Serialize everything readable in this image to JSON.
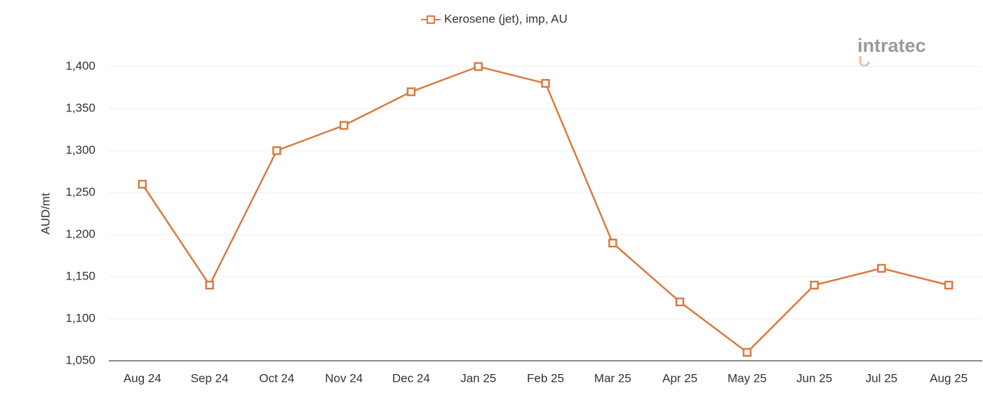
{
  "chart_data": {
    "type": "line",
    "legend_position": "top",
    "logo": "intratec",
    "y_label": "AUD/mt",
    "categories": [
      "Aug 24",
      "Sep 24",
      "Oct 24",
      "Nov 24",
      "Dec 24",
      "Jan 25",
      "Feb 25",
      "Mar 25",
      "Apr 25",
      "May 25",
      "Jun 25",
      "Jul 25",
      "Aug 25"
    ],
    "series": [
      {
        "name": "Kerosene (jet), imp, AU",
        "color": "#d97a3f",
        "values": [
          1260,
          1140,
          1300,
          1330,
          1370,
          1400,
          1380,
          1190,
          1120,
          1060,
          1140,
          1160,
          1140
        ]
      }
    ],
    "ylim": [
      1050,
      1400
    ],
    "yticks": [
      {
        "value": 1050,
        "label": "1,050"
      },
      {
        "value": 1100,
        "label": "1,100"
      },
      {
        "value": 1150,
        "label": "1,150"
      },
      {
        "value": 1200,
        "label": "1,200"
      },
      {
        "value": 1250,
        "label": "1,250"
      },
      {
        "value": 1300,
        "label": "1,300"
      },
      {
        "value": 1350,
        "label": "1,350"
      },
      {
        "value": 1400,
        "label": "1,400"
      }
    ],
    "grid": true
  }
}
